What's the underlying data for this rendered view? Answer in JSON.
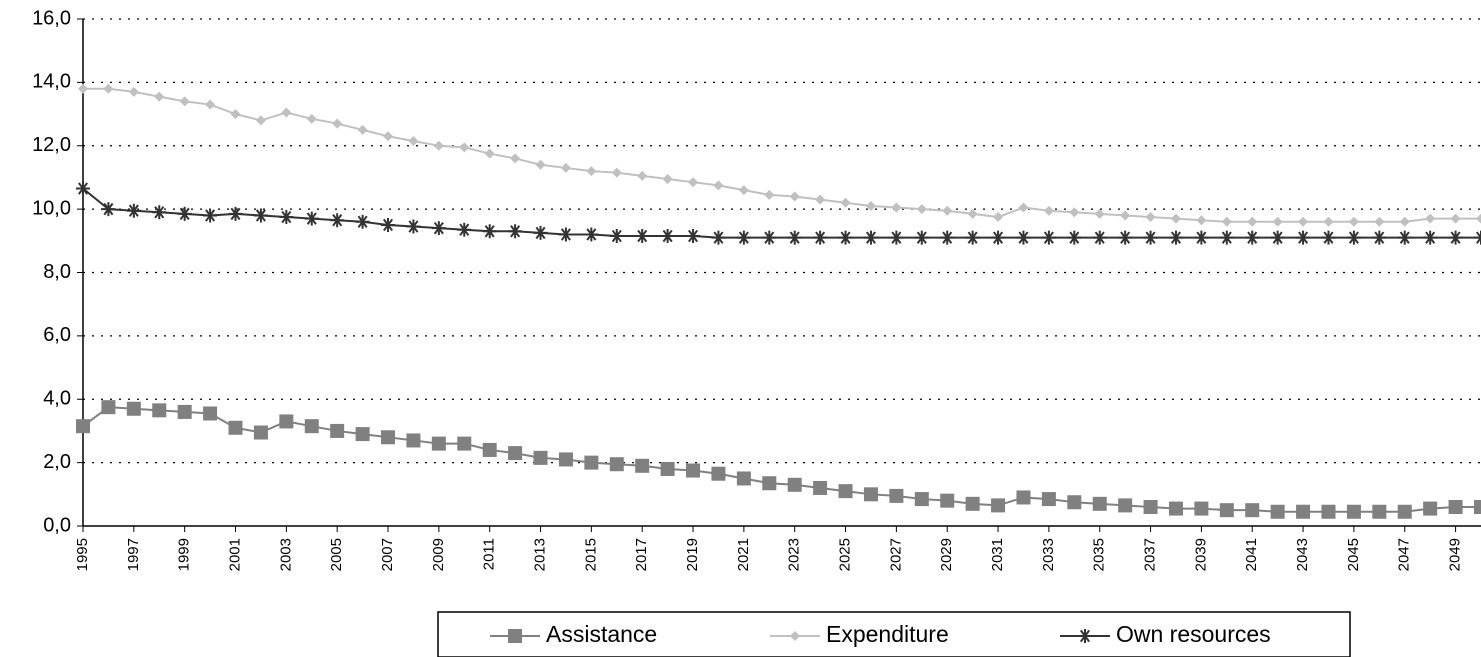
{
  "chart_data": {
    "type": "line",
    "x": [
      1995,
      1996,
      1997,
      1998,
      1999,
      2000,
      2001,
      2002,
      2003,
      2004,
      2005,
      2006,
      2007,
      2008,
      2009,
      2010,
      2011,
      2012,
      2013,
      2014,
      2015,
      2016,
      2017,
      2018,
      2019,
      2020,
      2021,
      2022,
      2023,
      2024,
      2025,
      2026,
      2027,
      2028,
      2029,
      2030,
      2031,
      2032,
      2033,
      2034,
      2035,
      2036,
      2037,
      2038,
      2039,
      2040,
      2041,
      2042,
      2043,
      2044,
      2045,
      2046,
      2047,
      2048,
      2049,
      2050
    ],
    "xlim": [
      1995,
      2050
    ],
    "xticks": [
      1995,
      1997,
      1999,
      2001,
      2003,
      2005,
      2007,
      2009,
      2011,
      2013,
      2015,
      2017,
      2019,
      2021,
      2023,
      2025,
      2027,
      2029,
      2031,
      2033,
      2035,
      2037,
      2039,
      2041,
      2043,
      2045,
      2047,
      2049
    ],
    "ylim": [
      0,
      16
    ],
    "yticks": [
      {
        "value": 0,
        "label": "0,0"
      },
      {
        "value": 2,
        "label": "2,0"
      },
      {
        "value": 4,
        "label": "4,0"
      },
      {
        "value": 6,
        "label": "6,0"
      },
      {
        "value": 8,
        "label": "8,0"
      },
      {
        "value": 10,
        "label": "10,0"
      },
      {
        "value": 12,
        "label": "12,0"
      },
      {
        "value": 14,
        "label": "14,0"
      },
      {
        "value": 16,
        "label": "16,0"
      }
    ],
    "grid": true,
    "legend": "bottom",
    "series": [
      {
        "name": "Assistance",
        "color": "#808080",
        "marker": "square",
        "values": [
          3.15,
          3.75,
          3.7,
          3.65,
          3.6,
          3.55,
          3.1,
          2.95,
          3.3,
          3.15,
          3.0,
          2.9,
          2.8,
          2.7,
          2.6,
          2.6,
          2.4,
          2.3,
          2.15,
          2.1,
          2.0,
          1.95,
          1.9,
          1.8,
          1.75,
          1.65,
          1.5,
          1.35,
          1.3,
          1.2,
          1.1,
          1.0,
          0.95,
          0.85,
          0.8,
          0.7,
          0.65,
          0.9,
          0.85,
          0.75,
          0.7,
          0.65,
          0.6,
          0.55,
          0.55,
          0.5,
          0.5,
          0.45,
          0.45,
          0.45,
          0.45,
          0.45,
          0.45,
          0.55,
          0.6,
          0.6
        ]
      },
      {
        "name": "Expenditure",
        "color": "#c0c0c0",
        "marker": "diamond",
        "values": [
          13.8,
          13.8,
          13.7,
          13.55,
          13.4,
          13.3,
          13.0,
          12.8,
          13.05,
          12.85,
          12.7,
          12.5,
          12.3,
          12.15,
          12.0,
          11.95,
          11.75,
          11.6,
          11.4,
          11.3,
          11.2,
          11.15,
          11.05,
          10.95,
          10.85,
          10.75,
          10.6,
          10.45,
          10.4,
          10.3,
          10.2,
          10.1,
          10.05,
          10.0,
          9.95,
          9.85,
          9.75,
          10.05,
          9.95,
          9.9,
          9.85,
          9.8,
          9.75,
          9.7,
          9.65,
          9.6,
          9.6,
          9.6,
          9.6,
          9.6,
          9.6,
          9.6,
          9.6,
          9.7,
          9.7,
          9.7
        ]
      },
      {
        "name": "Own resources",
        "color": "#333333",
        "marker": "star",
        "values": [
          10.65,
          10.0,
          9.95,
          9.9,
          9.85,
          9.8,
          9.85,
          9.8,
          9.75,
          9.7,
          9.65,
          9.6,
          9.5,
          9.45,
          9.4,
          9.35,
          9.3,
          9.3,
          9.25,
          9.2,
          9.2,
          9.15,
          9.15,
          9.15,
          9.15,
          9.1,
          9.1,
          9.1,
          9.1,
          9.1,
          9.1,
          9.1,
          9.1,
          9.1,
          9.1,
          9.1,
          9.1,
          9.1,
          9.1,
          9.1,
          9.1,
          9.1,
          9.1,
          9.1,
          9.1,
          9.1,
          9.1,
          9.1,
          9.1,
          9.1,
          9.1,
          9.1,
          9.1,
          9.1,
          9.1,
          9.1
        ]
      }
    ]
  }
}
